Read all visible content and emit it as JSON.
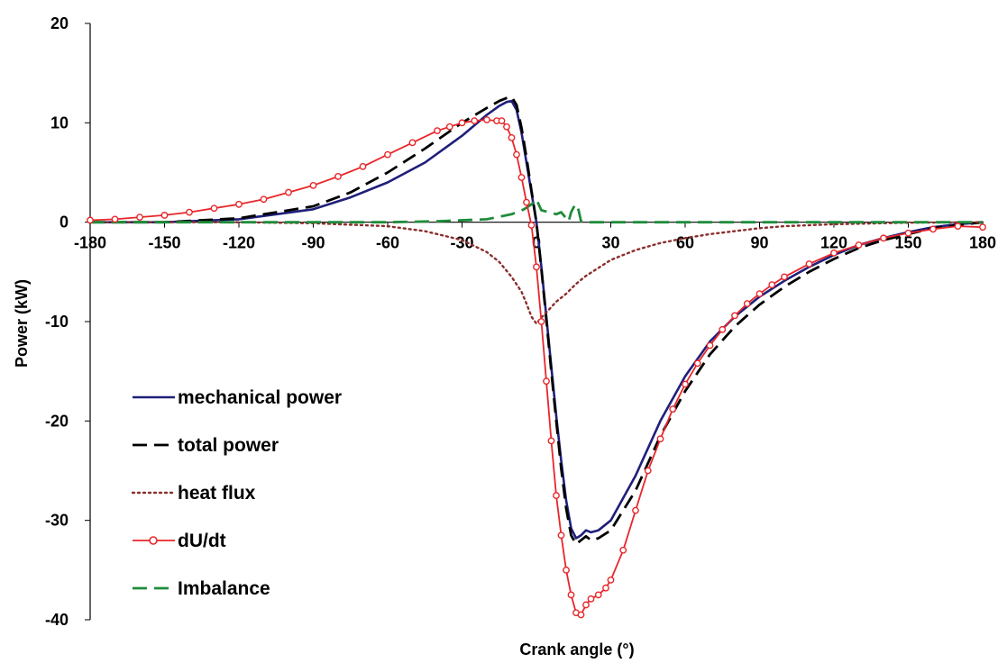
{
  "chart_data": {
    "type": "line",
    "title": "",
    "xlabel": "Crank angle (°)",
    "ylabel": "Power (kW)",
    "xlim": [
      -180,
      180
    ],
    "ylim": [
      -40,
      20
    ],
    "xticks": [
      -180,
      -150,
      -120,
      -90,
      -60,
      -30,
      0,
      30,
      60,
      90,
      120,
      150,
      180
    ],
    "yticks": [
      -40,
      -30,
      -20,
      -10,
      0,
      10,
      20
    ],
    "grid": false,
    "legend_position": "lower-left",
    "series": [
      {
        "name": "mechanical power",
        "color": "#1F1F7A",
        "style": "solid",
        "x": [
          -180,
          -150,
          -120,
          -90,
          -75,
          -60,
          -45,
          -30,
          -20,
          -15,
          -12,
          -10,
          -8,
          -6,
          -4,
          -2,
          0,
          2,
          4,
          6,
          8,
          10,
          12,
          14,
          16,
          18,
          20,
          22,
          25,
          30,
          40,
          50,
          60,
          70,
          80,
          90,
          100,
          110,
          120,
          130,
          140,
          150,
          160,
          170,
          180
        ],
        "y": [
          0,
          0,
          0.3,
          1.3,
          2.5,
          4.0,
          6.0,
          8.7,
          10.8,
          11.7,
          12.1,
          12.2,
          11.3,
          9.0,
          6.0,
          3.0,
          0,
          -4.5,
          -9.5,
          -14.5,
          -19.5,
          -24.0,
          -28.0,
          -30.8,
          -31.8,
          -31.5,
          -31.0,
          -31.2,
          -31.0,
          -30.0,
          -25.5,
          -20.0,
          -15.5,
          -12.0,
          -9.5,
          -7.5,
          -5.9,
          -4.5,
          -3.3,
          -2.3,
          -1.6,
          -1.0,
          -0.5,
          -0.2,
          0
        ]
      },
      {
        "name": "total power",
        "color": "#000000",
        "style": "dash",
        "x": [
          -180,
          -150,
          -120,
          -90,
          -75,
          -60,
          -45,
          -30,
          -20,
          -15,
          -12,
          -10,
          -8,
          -6,
          -4,
          -2,
          0,
          2,
          4,
          6,
          8,
          10,
          12,
          14,
          16,
          18,
          20,
          22,
          25,
          30,
          40,
          50,
          60,
          70,
          80,
          90,
          100,
          110,
          120,
          130,
          140,
          150,
          160,
          170,
          180
        ],
        "y": [
          0,
          0,
          0.4,
          1.6,
          3.0,
          5.0,
          7.4,
          10.0,
          11.5,
          12.2,
          12.5,
          12.6,
          11.8,
          9.5,
          6.5,
          3.2,
          0,
          -4.7,
          -9.8,
          -15.0,
          -20.0,
          -24.8,
          -28.8,
          -31.5,
          -32.4,
          -32.0,
          -31.6,
          -32.0,
          -31.8,
          -31.0,
          -27.0,
          -21.5,
          -17.0,
          -13.3,
          -10.5,
          -8.3,
          -6.5,
          -5.0,
          -3.7,
          -2.6,
          -1.8,
          -1.2,
          -0.6,
          -0.3,
          0
        ]
      },
      {
        "name": "heat flux",
        "color": "#8B2E2E",
        "style": "dot",
        "x": [
          -180,
          -120,
          -90,
          -60,
          -45,
          -30,
          -20,
          -15,
          -10,
          -6,
          -4,
          -2,
          0,
          2,
          5,
          8,
          12,
          16,
          20,
          25,
          30,
          40,
          50,
          60,
          70,
          80,
          90,
          100,
          120,
          150,
          180
        ],
        "y": [
          0,
          0,
          -0.1,
          -0.4,
          -0.9,
          -1.8,
          -3.0,
          -4.0,
          -5.5,
          -7.0,
          -8.2,
          -9.5,
          -10.2,
          -9.6,
          -8.8,
          -8.0,
          -7.2,
          -6.2,
          -5.4,
          -4.6,
          -3.8,
          -2.8,
          -2.1,
          -1.6,
          -1.2,
          -0.9,
          -0.6,
          -0.4,
          -0.2,
          -0.05,
          0
        ]
      },
      {
        "name": "dU/dt",
        "color": "#E8262A",
        "style": "marker",
        "x": [
          -180,
          -170,
          -160,
          -150,
          -140,
          -130,
          -120,
          -110,
          -100,
          -90,
          -80,
          -70,
          -60,
          -50,
          -40,
          -35,
          -30,
          -25,
          -20,
          -16,
          -14,
          -12,
          -10,
          -8,
          -6,
          -4,
          -2,
          0,
          2,
          4,
          6,
          8,
          10,
          12,
          14,
          16,
          18,
          20,
          22,
          25,
          28,
          30,
          35,
          40,
          45,
          50,
          55,
          60,
          65,
          70,
          75,
          80,
          85,
          90,
          95,
          100,
          110,
          120,
          130,
          140,
          150,
          160,
          170,
          180
        ],
        "y": [
          0.2,
          0.3,
          0.5,
          0.7,
          1.0,
          1.4,
          1.8,
          2.3,
          3.0,
          3.7,
          4.6,
          5.6,
          6.8,
          8.0,
          9.2,
          9.6,
          10.0,
          10.2,
          10.3,
          10.2,
          10.2,
          9.6,
          8.5,
          6.8,
          4.5,
          2.0,
          -0.3,
          -4.5,
          -10.0,
          -16.0,
          -22.0,
          -27.5,
          -31.5,
          -35.0,
          -37.5,
          -39.3,
          -39.5,
          -38.5,
          -37.9,
          -37.5,
          -36.8,
          -36.0,
          -33.0,
          -29.0,
          -25.0,
          -21.8,
          -18.8,
          -16.3,
          -14.2,
          -12.4,
          -10.8,
          -9.4,
          -8.2,
          -7.2,
          -6.3,
          -5.5,
          -4.2,
          -3.1,
          -2.3,
          -1.6,
          -1.1,
          -0.7,
          -0.4,
          -0.5
        ]
      },
      {
        "name": "Imbalance",
        "color": "#1E8C3A",
        "style": "dash",
        "x": [
          -180,
          -60,
          -40,
          -20,
          -10,
          -5,
          -2,
          0,
          2,
          5,
          8,
          10,
          12,
          13,
          14,
          15,
          16,
          17,
          18,
          20,
          30,
          60,
          120,
          180
        ],
        "y": [
          0,
          0,
          0.1,
          0.3,
          0.8,
          1.3,
          1.8,
          2.3,
          1.2,
          1.0,
          0.8,
          1.0,
          0.4,
          0.1,
          1.0,
          1.5,
          1.8,
          1.2,
          0.1,
          0,
          0,
          0,
          0,
          0
        ]
      }
    ]
  }
}
